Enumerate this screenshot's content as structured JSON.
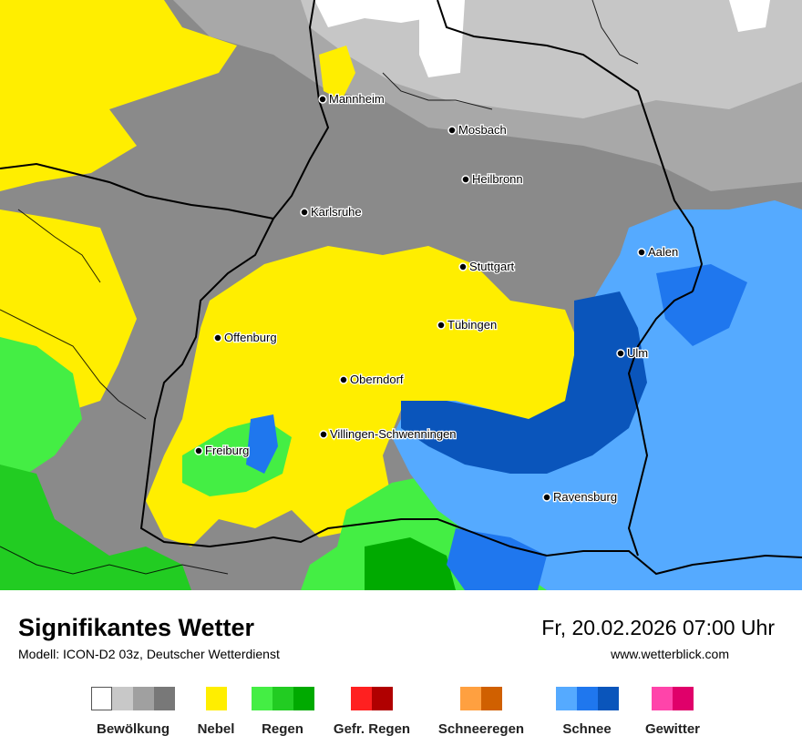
{
  "title": "Signifikantes Wetter",
  "model_line": "Modell: ICON-D2 03z, Deutscher Wetterdienst",
  "datetime": "Fr, 20.02.2026 07:00 Uhr",
  "website": "www.wetterblick.com",
  "cities": [
    {
      "name": "Mannheim"
    },
    {
      "name": "Mosbach"
    },
    {
      "name": "Heilbronn"
    },
    {
      "name": "Karlsruhe"
    },
    {
      "name": "Aalen"
    },
    {
      "name": "Stuttgart"
    },
    {
      "name": "Tübingen"
    },
    {
      "name": "Offenburg"
    },
    {
      "name": "Ulm"
    },
    {
      "name": "Oberndorf"
    },
    {
      "name": "Villingen-Schwenningen"
    },
    {
      "name": "Freiburg"
    },
    {
      "name": "Ravensburg"
    }
  ],
  "legend": [
    {
      "label": "Bewölkung",
      "colors": [
        "#ffffff",
        "#c8c8c8",
        "#a0a0a0",
        "#787878"
      ]
    },
    {
      "label": "Nebel",
      "colors": [
        "#ffee00"
      ]
    },
    {
      "label": "Regen",
      "colors": [
        "#44ee44",
        "#22cc22",
        "#00aa00"
      ]
    },
    {
      "label": "Gefr. Regen",
      "colors": [
        "#ff2020",
        "#b00000"
      ]
    },
    {
      "label": "Schneeregen",
      "colors": [
        "#ffa040",
        "#d06000"
      ]
    },
    {
      "label": "Schnee",
      "colors": [
        "#55aaff",
        "#1f77ee",
        "#0a55bb"
      ]
    },
    {
      "label": "Gewitter",
      "colors": [
        "#ff44aa",
        "#e0006a"
      ]
    }
  ]
}
